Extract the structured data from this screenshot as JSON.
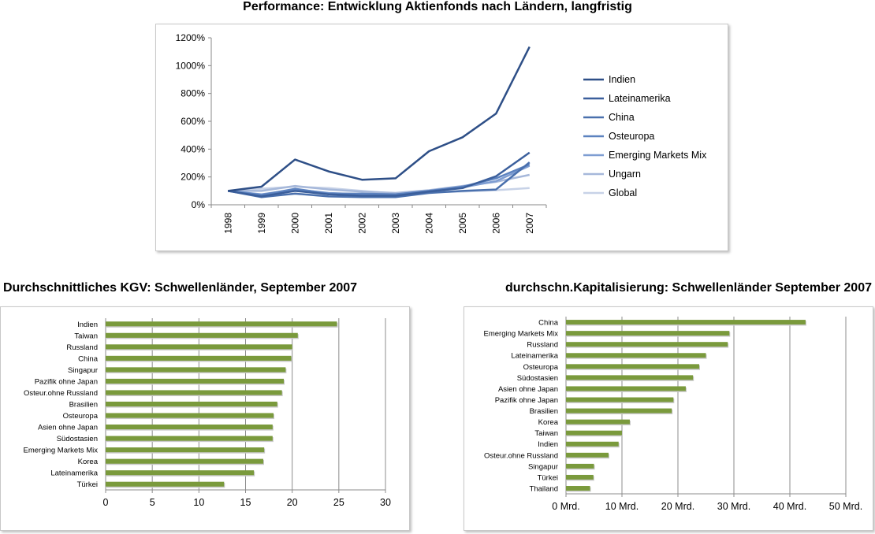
{
  "chart_data": [
    {
      "id": "performance",
      "type": "line",
      "title": "Performance: Entwicklung Aktienfonds nach Ländern, langfristig",
      "xlabel": "",
      "ylabel": "",
      "x": [
        "1998",
        "1999",
        "2000",
        "2001",
        "2002",
        "2003",
        "2004",
        "2005",
        "2006",
        "2007"
      ],
      "ylim": [
        0,
        1200
      ],
      "yticks": [
        0,
        200,
        400,
        600,
        800,
        1000,
        1200
      ],
      "ytick_labels": [
        "0%",
        "200%",
        "400%",
        "600%",
        "800%",
        "1000%",
        "1200%"
      ],
      "legend_position": "right",
      "series": [
        {
          "name": "Indien",
          "color": "#2e4f87",
          "values": [
            100,
            130,
            325,
            240,
            180,
            190,
            385,
            485,
            655,
            1135
          ]
        },
        {
          "name": "Lateinamerika",
          "color": "#3b5f9c",
          "values": [
            100,
            60,
            100,
            75,
            65,
            65,
            95,
            120,
            205,
            375
          ]
        },
        {
          "name": "China",
          "color": "#4a70ad",
          "values": [
            100,
            55,
            80,
            60,
            55,
            55,
            85,
            100,
            110,
            305
          ]
        },
        {
          "name": "Osteuropa",
          "color": "#5c82bf",
          "values": [
            100,
            70,
            115,
            80,
            80,
            75,
            100,
            130,
            190,
            290
          ]
        },
        {
          "name": "Emerging Markets Mix",
          "color": "#7e9dd2",
          "values": [
            100,
            75,
            110,
            85,
            75,
            75,
            100,
            125,
            170,
            280
          ]
        },
        {
          "name": "Ungarn",
          "color": "#a6b8da",
          "values": [
            100,
            100,
            135,
            110,
            95,
            85,
            105,
            135,
            165,
            215
          ]
        },
        {
          "name": "Global",
          "color": "#c7d2e7",
          "values": [
            100,
            115,
            130,
            120,
            100,
            80,
            90,
            95,
            105,
            120
          ]
        }
      ]
    },
    {
      "id": "kgv",
      "type": "bar",
      "orientation": "horizontal",
      "title": "Durchschnittliches KGV: Schwellenländer, September 2007",
      "bar_color": "#7a9a3c",
      "categories": [
        "Indien",
        "Taiwan",
        "Russland",
        "China",
        "Singapur",
        "Pazifik ohne Japan",
        "Osteur.ohne Russland",
        "Brasilien",
        "Osteuropa",
        "Asien ohne Japan",
        "Südostasien",
        "Emerging Markets Mix",
        "Korea",
        "Lateinamerika",
        "Türkei"
      ],
      "values": [
        24.8,
        20.6,
        20.0,
        19.9,
        19.3,
        19.1,
        18.9,
        18.4,
        18.0,
        17.9,
        17.9,
        17.0,
        16.9,
        15.9,
        12.7
      ],
      "xlim": [
        0,
        30
      ],
      "xticks": [
        0,
        5,
        10,
        15,
        20,
        25,
        30
      ],
      "xtick_labels": [
        "0",
        "5",
        "10",
        "15",
        "20",
        "25",
        "30"
      ]
    },
    {
      "id": "kapitalisierung",
      "type": "bar",
      "orientation": "horizontal",
      "title": "durchschn.Kapitalisierung: Schwellenländer September 2007",
      "bar_color": "#7a9a3c",
      "categories": [
        "China",
        "Emerging Markets Mix",
        "Russland",
        "Lateinamerika",
        "Osteuropa",
        "Südostasien",
        "Asien ohne Japan",
        "Pazifik ohne Japan",
        "Brasilien",
        "Korea",
        "Taiwan",
        "Indien",
        "Osteur.ohne Russland",
        "Singapur",
        "Türkei",
        "Thailand"
      ],
      "values": [
        42.8,
        29.2,
        28.9,
        25.0,
        23.8,
        22.7,
        21.4,
        19.2,
        18.9,
        11.4,
        10.0,
        9.4,
        7.6,
        5.0,
        4.9,
        4.3
      ],
      "xlim": [
        0,
        50
      ],
      "xticks": [
        0,
        10,
        20,
        30,
        40,
        50
      ],
      "xtick_labels": [
        "0 Mrd.",
        "10 Mrd.",
        "20 Mrd.",
        "30 Mrd.",
        "40 Mrd.",
        "50 Mrd."
      ]
    }
  ]
}
